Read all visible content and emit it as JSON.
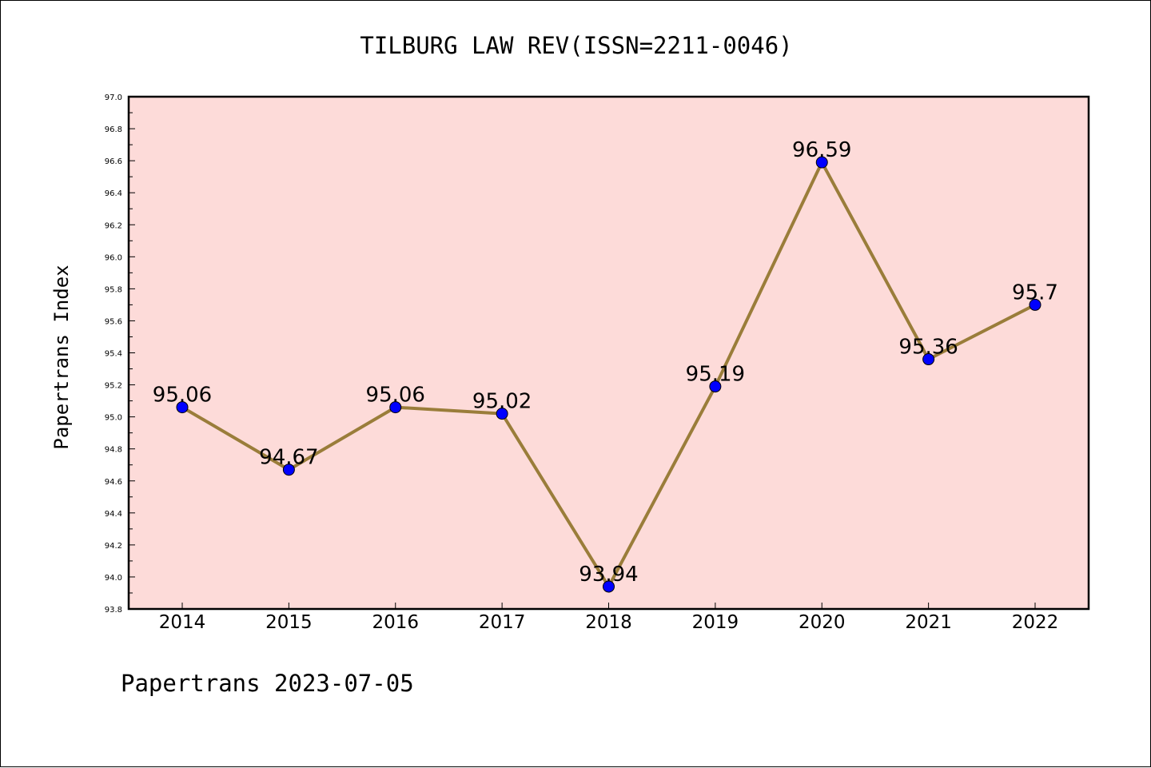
{
  "chart_data": {
    "type": "line",
    "title": "TILBURG LAW REV(ISSN=2211-0046)",
    "ylabel": "Papertrans Index",
    "xlabel": "",
    "footer": "Papertrans 2023-07-05",
    "categories": [
      "2014",
      "2015",
      "2016",
      "2017",
      "2018",
      "2019",
      "2020",
      "2021",
      "2022"
    ],
    "values": [
      95.06,
      94.67,
      95.06,
      95.02,
      93.94,
      95.19,
      96.59,
      95.36,
      95.7
    ],
    "data_labels": [
      "95.06",
      "94.67",
      "95.06",
      "95.02",
      "93.94",
      "95.19",
      "96.59",
      "95.36",
      "95.7"
    ],
    "ylim": [
      93.8,
      97.0
    ],
    "yticks": [
      "93.8",
      "94.0",
      "94.2",
      "94.4",
      "94.6",
      "94.8",
      "95.0",
      "95.2",
      "95.4",
      "95.6",
      "95.8",
      "96.0",
      "96.2",
      "96.4",
      "96.6",
      "96.8",
      "97.0"
    ],
    "grid": false,
    "colors": {
      "plot_background": "#fddbd9",
      "line": "#9a7d3a",
      "marker": "#0000ff"
    }
  }
}
